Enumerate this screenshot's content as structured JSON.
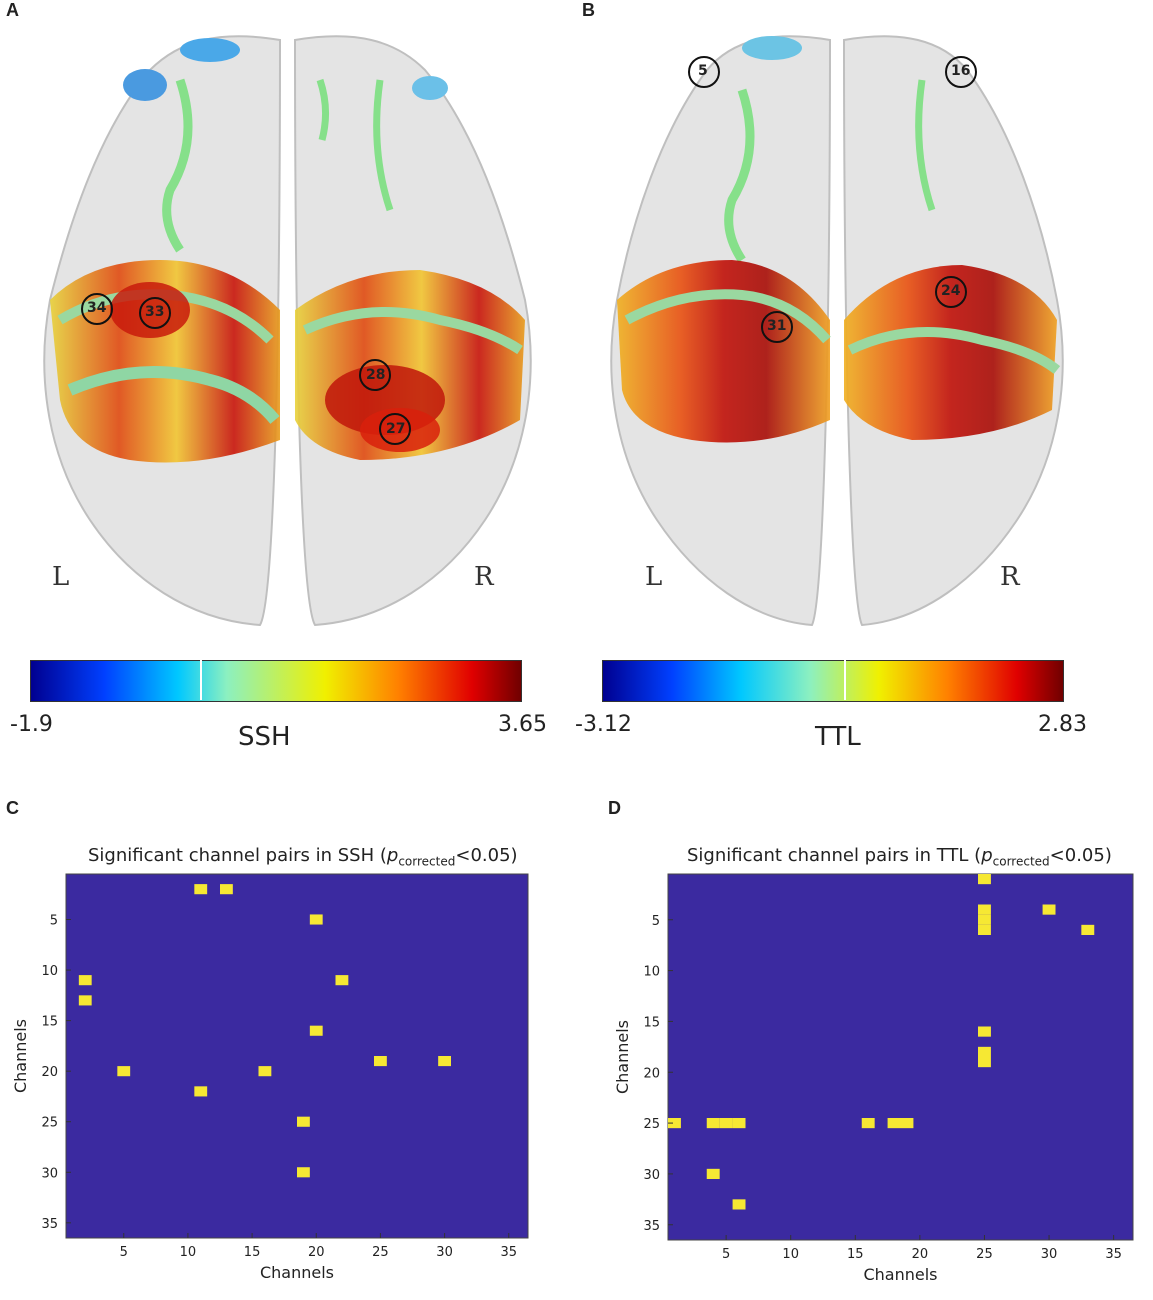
{
  "panels": {
    "A": {
      "letter": "A",
      "left_side": "L",
      "right_side": "R",
      "channels": [
        "33",
        "34",
        "28",
        "27"
      ],
      "colorbar": {
        "min": "-1.9",
        "max": "3.65",
        "label": "SSH"
      }
    },
    "B": {
      "letter": "B",
      "left_side": "L",
      "right_side": "R",
      "channels": [
        "5",
        "16",
        "24",
        "31"
      ],
      "colorbar": {
        "min": "-3.12",
        "max": "2.83",
        "label": "TTL"
      }
    },
    "C": {
      "letter": "C",
      "title_pre": "Significant channel pairs in SSH (",
      "title_p": "p",
      "title_sub": "corrected",
      "title_post": "<0.05)"
    },
    "D": {
      "letter": "D",
      "title_pre": "Significant channel pairs in TTL (",
      "title_p": "p",
      "title_sub": "corrected",
      "title_post": "<0.05)"
    }
  },
  "chart_data": [
    {
      "type": "heatmap",
      "title": "Significant channel pairs in SSH (pcorrected<0.05)",
      "xlabel": "Channels",
      "ylabel": "Channels",
      "xlim": [
        0.5,
        36.5
      ],
      "ylim": [
        0.5,
        36.5
      ],
      "xticks": [
        5,
        10,
        15,
        20,
        25,
        30,
        35
      ],
      "yticks": [
        5,
        10,
        15,
        20,
        25,
        30,
        35
      ],
      "background_color": "#3b2aa0",
      "cell_color": "#f6e833",
      "cells": [
        [
          11,
          2
        ],
        [
          13,
          2
        ],
        [
          20,
          5
        ],
        [
          2,
          11
        ],
        [
          22,
          11
        ],
        [
          2,
          13
        ],
        [
          20,
          16
        ],
        [
          25,
          19
        ],
        [
          30,
          19
        ],
        [
          5,
          20
        ],
        [
          16,
          20
        ],
        [
          11,
          22
        ],
        [
          19,
          25
        ],
        [
          19,
          30
        ]
      ]
    },
    {
      "type": "heatmap",
      "title": "Significant channel pairs in TTL (pcorrected<0.05)",
      "xlabel": "Channels",
      "ylabel": "Channels",
      "xlim": [
        0.5,
        36.5
      ],
      "ylim": [
        0.5,
        36.5
      ],
      "xticks": [
        5,
        10,
        15,
        20,
        25,
        30,
        35
      ],
      "yticks": [
        5,
        10,
        15,
        20,
        25,
        30,
        35
      ],
      "background_color": "#3b2aa0",
      "cell_color": "#f6e833",
      "cells": [
        [
          25,
          1
        ],
        [
          30,
          4
        ],
        [
          25,
          4
        ],
        [
          25,
          5
        ],
        [
          25,
          6
        ],
        [
          33,
          6
        ],
        [
          25,
          16
        ],
        [
          25,
          18
        ],
        [
          25,
          19
        ],
        [
          1,
          25
        ],
        [
          4,
          25
        ],
        [
          5,
          25
        ],
        [
          6,
          25
        ],
        [
          16,
          25
        ],
        [
          18,
          25
        ],
        [
          19,
          25
        ],
        [
          4,
          30
        ],
        [
          6,
          33
        ]
      ]
    }
  ]
}
